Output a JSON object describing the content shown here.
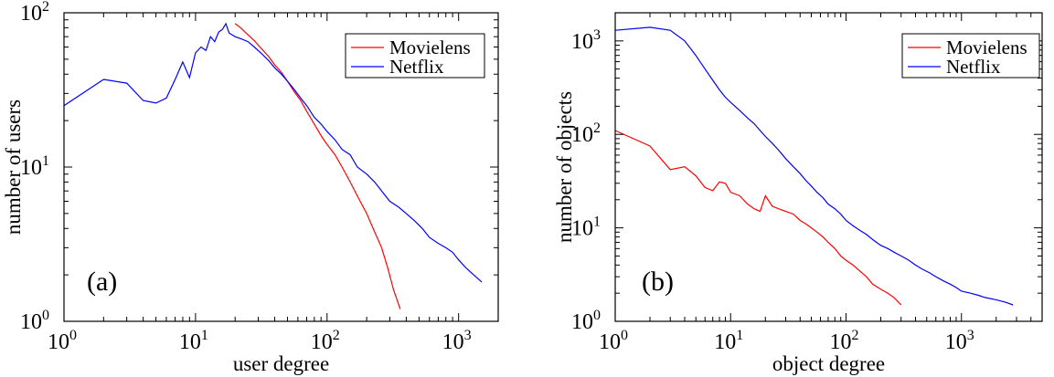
{
  "chart_data": [
    {
      "type": "line",
      "panel_label": "(a)",
      "xlabel": "user degree",
      "ylabel": "number of users",
      "xscale": "log",
      "yscale": "log",
      "xlim": [
        1,
        2000
      ],
      "ylim": [
        1,
        100
      ],
      "x_ticks": [
        {
          "base": "10",
          "exp": "0"
        },
        {
          "base": "10",
          "exp": "1"
        },
        {
          "base": "10",
          "exp": "2"
        },
        {
          "base": "10",
          "exp": "3"
        }
      ],
      "y_ticks": [
        {
          "base": "10",
          "exp": "0"
        },
        {
          "base": "10",
          "exp": "1"
        },
        {
          "base": "10",
          "exp": "2"
        }
      ],
      "legend_position": "top-right",
      "series": [
        {
          "name": "Movielens",
          "color": "#ff0000",
          "x": [
            20,
            22,
            25,
            28,
            32,
            36,
            40,
            45,
            50,
            56,
            63,
            70,
            80,
            90,
            100,
            115,
            130,
            150,
            170,
            200,
            230,
            260,
            290,
            320,
            360
          ],
          "y": [
            85,
            80,
            72,
            66,
            58,
            52,
            46,
            41,
            36,
            31,
            27,
            23,
            19,
            16,
            14,
            12,
            10,
            8,
            6.5,
            5,
            3.8,
            3,
            2.2,
            1.6,
            1.2
          ]
        },
        {
          "name": "Netflix",
          "color": "#0000ff",
          "x": [
            1,
            2,
            3,
            4,
            5,
            6,
            7,
            8,
            9,
            10,
            11,
            12,
            13,
            14,
            15,
            16,
            17,
            18,
            20,
            22,
            25,
            28,
            32,
            36,
            40,
            45,
            50,
            56,
            63,
            70,
            80,
            90,
            100,
            115,
            130,
            150,
            170,
            200,
            230,
            260,
            300,
            350,
            400,
            460,
            530,
            600,
            700,
            800,
            900,
            1000,
            1150,
            1300,
            1500
          ],
          "y": [
            25,
            37,
            35,
            27,
            26,
            28,
            37,
            48,
            38,
            55,
            60,
            57,
            70,
            65,
            75,
            78,
            85,
            74,
            70,
            68,
            65,
            60,
            54,
            49,
            44,
            40,
            36,
            32,
            28,
            25,
            21,
            19,
            17,
            15,
            13,
            12,
            10,
            9,
            8,
            7,
            6,
            5.5,
            5,
            4.5,
            4,
            3.5,
            3.2,
            3,
            2.8,
            2.5,
            2.2,
            2,
            1.8
          ]
        }
      ]
    },
    {
      "type": "line",
      "panel_label": "(b)",
      "xlabel": "object degree",
      "ylabel": "number of objects",
      "xscale": "log",
      "yscale": "log",
      "xlim": [
        1,
        5000
      ],
      "ylim": [
        1,
        2000
      ],
      "x_ticks": [
        {
          "base": "10",
          "exp": "0"
        },
        {
          "base": "10",
          "exp": "1"
        },
        {
          "base": "10",
          "exp": "2"
        },
        {
          "base": "10",
          "exp": "3"
        }
      ],
      "y_ticks": [
        {
          "base": "10",
          "exp": "0"
        },
        {
          "base": "10",
          "exp": "1"
        },
        {
          "base": "10",
          "exp": "2"
        },
        {
          "base": "10",
          "exp": "3"
        }
      ],
      "legend_position": "top-right",
      "series": [
        {
          "name": "Movielens",
          "color": "#ff0000",
          "x": [
            1,
            2,
            3,
            4,
            5,
            6,
            7,
            8,
            9,
            10,
            12,
            14,
            16,
            18,
            20,
            23,
            26,
            30,
            35,
            40,
            45,
            50,
            56,
            63,
            70,
            80,
            90,
            100,
            115,
            130,
            150,
            170,
            200,
            230,
            260,
            300
          ],
          "y": [
            110,
            75,
            42,
            45,
            36,
            27,
            25,
            31,
            30,
            24,
            22,
            18,
            16,
            15,
            22,
            17,
            16,
            15,
            14,
            12,
            11,
            10,
            9,
            8,
            7,
            6,
            5,
            4.5,
            4,
            3.5,
            3,
            2.5,
            2.2,
            2,
            1.8,
            1.5
          ]
        },
        {
          "name": "Netflix",
          "color": "#0000ff",
          "x": [
            1,
            2,
            3,
            4,
            5,
            6,
            7,
            8,
            9,
            10,
            12,
            14,
            16,
            18,
            20,
            23,
            26,
            30,
            35,
            40,
            45,
            50,
            56,
            63,
            70,
            80,
            90,
            100,
            115,
            130,
            150,
            170,
            200,
            230,
            260,
            300,
            350,
            400,
            460,
            530,
            600,
            700,
            800,
            900,
            1000,
            1200,
            1400,
            1600,
            2000,
            2400,
            2800
          ],
          "y": [
            1300,
            1400,
            1300,
            1000,
            700,
            500,
            380,
            300,
            250,
            220,
            180,
            150,
            130,
            110,
            95,
            80,
            68,
            55,
            45,
            38,
            32,
            28,
            24,
            21,
            18,
            16,
            14,
            12,
            10.5,
            9.5,
            8.5,
            7.5,
            6.5,
            6,
            5.5,
            5,
            4.5,
            4,
            3.6,
            3.3,
            3,
            2.7,
            2.5,
            2.3,
            2.1,
            2,
            1.9,
            1.8,
            1.7,
            1.6,
            1.5
          ]
        }
      ]
    }
  ]
}
